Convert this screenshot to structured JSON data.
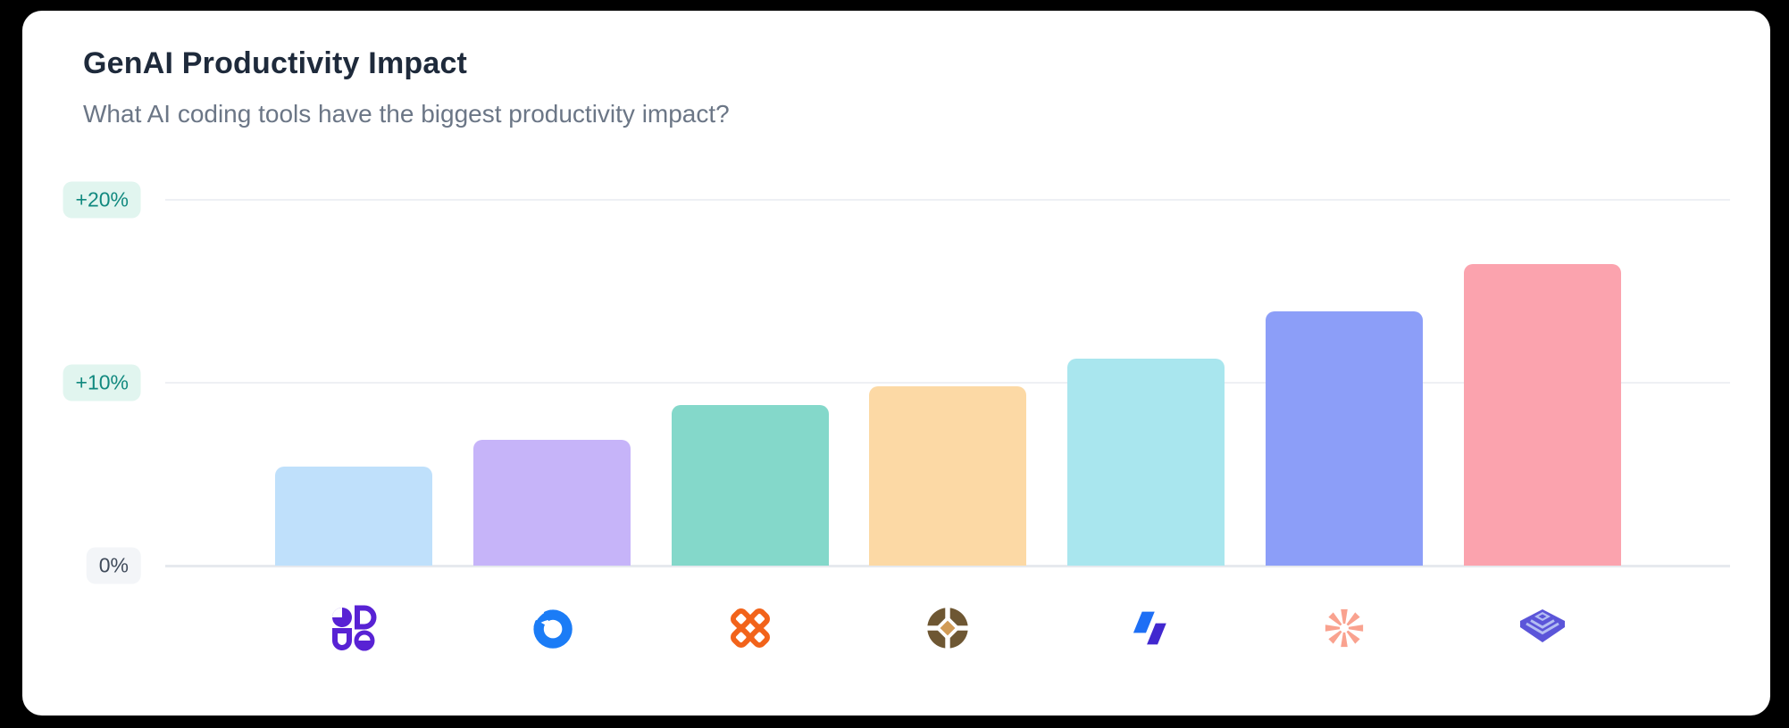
{
  "page": {
    "background_color": "#000000",
    "card_background_color": "#ffffff"
  },
  "header": {
    "title": "GenAI Productivity Impact",
    "subtitle": "What AI coding tools have the biggest productivity impact?"
  },
  "chart_data": {
    "type": "bar",
    "title": "GenAI Productivity Impact",
    "subtitle": "What AI coding tools have the biggest productivity impact?",
    "unit": "%",
    "categories": [
      "purple-petals-logo",
      "blue-notched-ring-logo",
      "orange-clover-logo",
      "brown-quartered-coin-logo",
      "blue-parallelograms-logo",
      "coral-asterisk-logo",
      "indigo-layered-pyramid-logo"
    ],
    "values": [
      5.4,
      6.9,
      8.8,
      9.8,
      11.3,
      13.9,
      16.5
    ],
    "bar_colors": [
      "#bfe0fb",
      "#c6b4f9",
      "#84d8ca",
      "#fcd9a5",
      "#a9e6ee",
      "#8c9ef8",
      "#fba3ae"
    ],
    "xlabel": "",
    "ylabel": "",
    "ylim": [
      0,
      21.5
    ],
    "grid": true,
    "legend": "none",
    "x_axis_labels": "logos-only",
    "y_ticks": [
      {
        "label": "0%",
        "value": 0,
        "variant": "neutral"
      },
      {
        "label": "+10%",
        "value": 10,
        "variant": "positive"
      },
      {
        "label": "+20%",
        "value": 20,
        "variant": "positive"
      }
    ]
  },
  "tool_icons": [
    {
      "name": "purple-petals-logo",
      "color": "#5822d4"
    },
    {
      "name": "blue-notched-ring-logo",
      "color": "#1b7cf6"
    },
    {
      "name": "orange-clover-logo",
      "color": "#f2631a"
    },
    {
      "name": "brown-quartered-coin-logo",
      "color": "#6e5733",
      "accent": "#d19b56"
    },
    {
      "name": "blue-parallelograms-logo",
      "color": "#1e6ff5",
      "accent": "#4128cf"
    },
    {
      "name": "coral-asterisk-logo",
      "color": "#f9a28f"
    },
    {
      "name": "indigo-layered-pyramid-logo",
      "color": "#5b55d9",
      "accent": "#b3bdf2"
    }
  ],
  "tick_pill_colors": {
    "positive_bg": "#e1f5ef",
    "positive_text": "#11897f",
    "neutral_bg": "#f3f5f8",
    "neutral_text": "#3f4a5a"
  }
}
